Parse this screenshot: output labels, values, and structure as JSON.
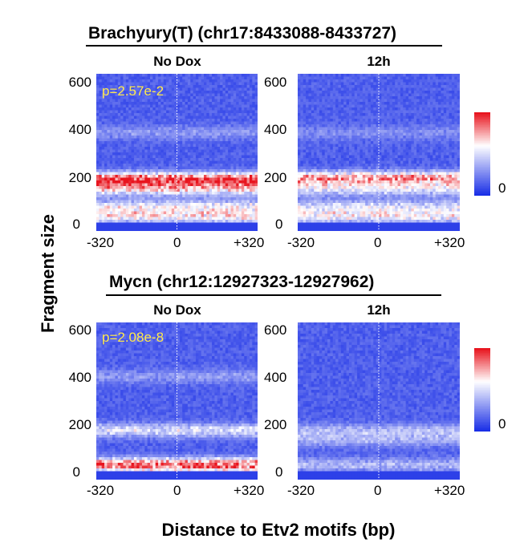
{
  "chart_data": [
    {
      "type": "heatmap",
      "title": "Brachyury(T) (chr17:8433088-8433727)",
      "conditions": [
        "No Dox",
        "12h"
      ],
      "pvalue": "p=2.57e-2",
      "x_ticks": [
        "-320",
        "0",
        "+320"
      ],
      "y_ticks": [
        "600",
        "400",
        "200",
        "0"
      ],
      "xlim": [
        -320,
        320
      ],
      "ylim": [
        0,
        640
      ],
      "colorbar_label": "0",
      "bands": {
        "No Dox": [
          {
            "y": 210,
            "intensity": 0.95
          },
          {
            "y": 170,
            "intensity": 0.55
          },
          {
            "y": 100,
            "intensity": 0.45
          },
          {
            "y": 60,
            "intensity": 0.55
          },
          {
            "y": 400,
            "intensity": 0.2
          }
        ],
        "12h": [
          {
            "y": 215,
            "intensity": 0.75
          },
          {
            "y": 170,
            "intensity": 0.45
          },
          {
            "y": 100,
            "intensity": 0.4
          },
          {
            "y": 60,
            "intensity": 0.5
          },
          {
            "y": 400,
            "intensity": 0.15
          }
        ]
      }
    },
    {
      "type": "heatmap",
      "title": "Mycn (chr12:12927323-12927962)",
      "conditions": [
        "No Dox",
        "12h"
      ],
      "pvalue": "p=2.08e-8",
      "x_ticks": [
        "-320",
        "0",
        "+320"
      ],
      "y_ticks": [
        "600",
        "400",
        "200",
        "0"
      ],
      "xlim": [
        -320,
        320
      ],
      "ylim": [
        0,
        640
      ],
      "colorbar_label": "0",
      "bands": {
        "No Dox": [
          {
            "y": 200,
            "intensity": 0.45
          },
          {
            "y": 60,
            "intensity": 0.9
          },
          {
            "y": 420,
            "intensity": 0.2
          }
        ],
        "12h": [
          {
            "y": 200,
            "intensity": 0.3
          },
          {
            "y": 160,
            "intensity": 0.25
          },
          {
            "y": 60,
            "intensity": 0.3
          }
        ]
      }
    }
  ],
  "axes": {
    "ylabel": "Fragment size",
    "xlabel": "Distance to Etv2 motifs (bp)"
  },
  "colors": {
    "low": "#1a2fe6",
    "mid": "#ffffff",
    "high": "#e8141e",
    "pvalue": "#ffe94d"
  }
}
